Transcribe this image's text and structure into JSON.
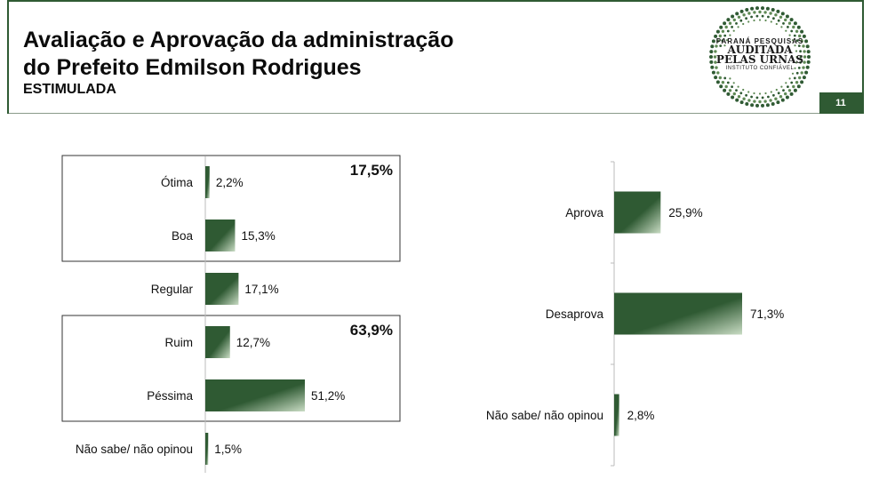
{
  "header": {
    "title_line1": "Avaliação e Aprovação da administração",
    "title_line2": "do Prefeito Edmilson Rodrigues",
    "subtitle": "ESTIMULADA",
    "page_number": "11"
  },
  "logo": {
    "line1": "PARANÁ PESQUISAS",
    "line2": "AUDITADA",
    "line3": "PELAS URNAS",
    "line4": "INSTITUTO CONFIÁVEL"
  },
  "colors": {
    "bar_dark": "#2f5a33",
    "bar_light": "#c9dcc4",
    "brand": "#2f5a33"
  },
  "chart_data": [
    {
      "type": "bar",
      "orientation": "horizontal",
      "categories": [
        "Ótima",
        "Boa",
        "Regular",
        "Ruim",
        "Péssima",
        "Não sabe/ não opinou"
      ],
      "values": [
        2.2,
        15.3,
        17.1,
        12.7,
        51.2,
        1.5
      ],
      "value_labels": [
        "2,2%",
        "15,3%",
        "17,1%",
        "12,7%",
        "51,2%",
        "1,5%"
      ],
      "groups": [
        {
          "label": "17,5%",
          "members": [
            "Ótima",
            "Boa"
          ]
        },
        {
          "label": "63,9%",
          "members": [
            "Ruim",
            "Péssima"
          ]
        }
      ],
      "xlim": [
        0,
        100
      ]
    },
    {
      "type": "bar",
      "orientation": "horizontal",
      "categories": [
        "Aprova",
        "Desaprova",
        "Não sabe/ não opinou"
      ],
      "values": [
        25.9,
        71.3,
        2.8
      ],
      "value_labels": [
        "25,9%",
        "71,3%",
        "2,8%"
      ],
      "xlim": [
        0,
        100
      ]
    }
  ]
}
